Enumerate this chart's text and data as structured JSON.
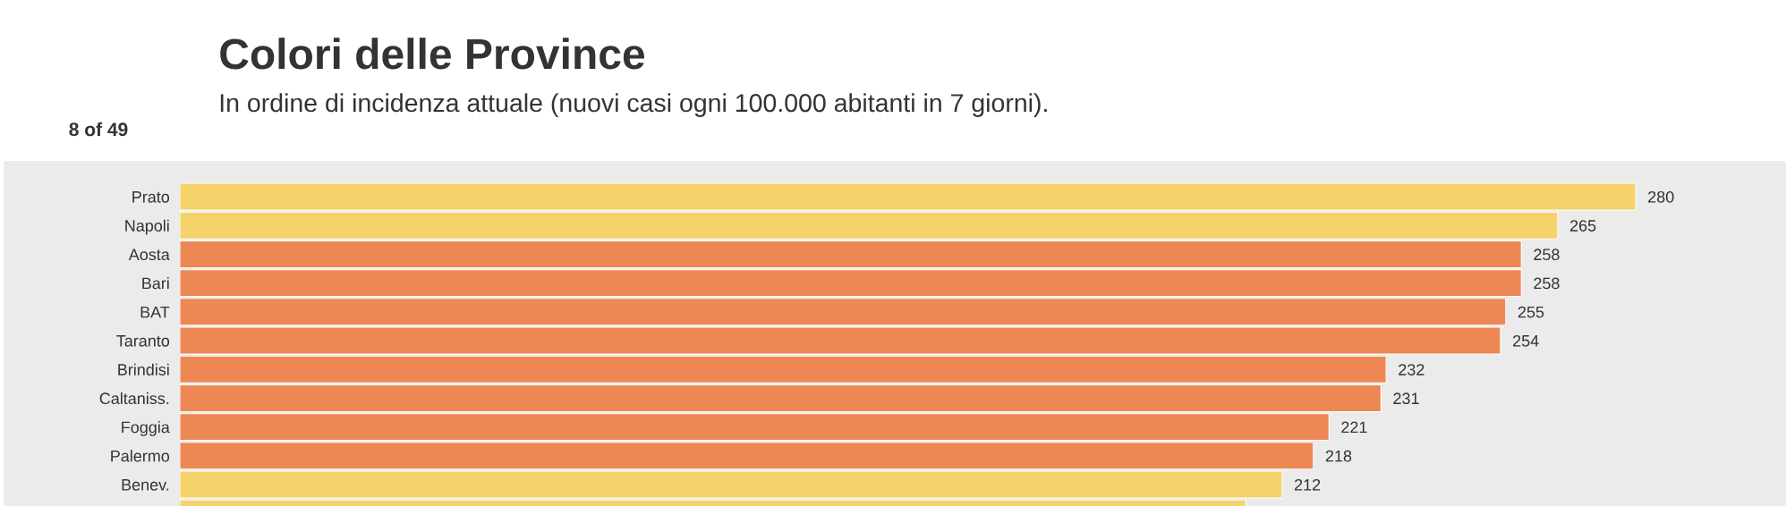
{
  "chart_data": {
    "type": "bar",
    "orientation": "horizontal",
    "title": "Colori delle Province",
    "subtitle": "In ordine di incidenza attuale (nuovi casi ogni 100.000 abitanti in 7 giorni).",
    "annotations": [
      "8 of 49"
    ],
    "categories": [
      "Prato",
      "Napoli",
      "Aosta",
      "Bari",
      "BAT",
      "Taranto",
      "Brindisi",
      "Caltaniss.",
      "Foggia",
      "Palermo",
      "Benev.",
      null
    ],
    "values": [
      280,
      265,
      258,
      258,
      255,
      254,
      232,
      231,
      221,
      218,
      212,
      205
    ],
    "value_labels": [
      "280",
      "265",
      "258",
      "258",
      "255",
      "254",
      "232",
      "231",
      "221",
      "218",
      "212",
      null
    ],
    "colors": [
      "#f5d36a",
      "#f5d36a",
      "#ed8855",
      "#ed8855",
      "#ed8855",
      "#ed8855",
      "#ed8855",
      "#ed8855",
      "#ed8855",
      "#ed8855",
      "#f5d36a",
      "#f5d36a"
    ],
    "tick_labels": "y"
  }
}
